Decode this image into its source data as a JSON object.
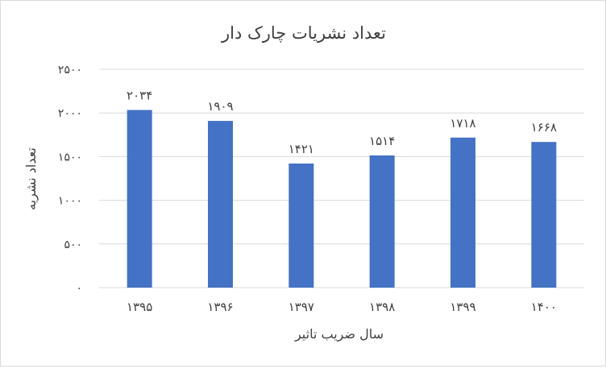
{
  "chart_data": {
    "type": "bar",
    "title": "تعداد نشریات چارک دار",
    "xlabel": "سال ضریب تاثیر",
    "ylabel": "تعداد نشریه",
    "categories": [
      "۱۳۹۵",
      "۱۳۹۶",
      "۱۳۹۷",
      "۱۳۹۸",
      "۱۳۹۹",
      "۱۴۰۰"
    ],
    "values": [
      2034,
      1909,
      1421,
      1514,
      1718,
      1668
    ],
    "data_labels": [
      "۲۰۳۴",
      "۱۹۰۹",
      "۱۴۲۱",
      "۱۵۱۴",
      "۱۷۱۸",
      "۱۶۶۸"
    ],
    "ylim": [
      0,
      2500
    ],
    "yticks": [
      0,
      500,
      1000,
      1500,
      2000,
      2500
    ],
    "ytick_labels": [
      "۰",
      "۵۰۰",
      "۱۰۰۰",
      "۱۵۰۰",
      "۲۰۰۰",
      "۲۵۰۰"
    ],
    "grid": true,
    "legend": "none",
    "colors": {
      "bar": "#4472c4",
      "grid": "#d9d9d9",
      "text": "#404040",
      "title": "#404040"
    }
  }
}
